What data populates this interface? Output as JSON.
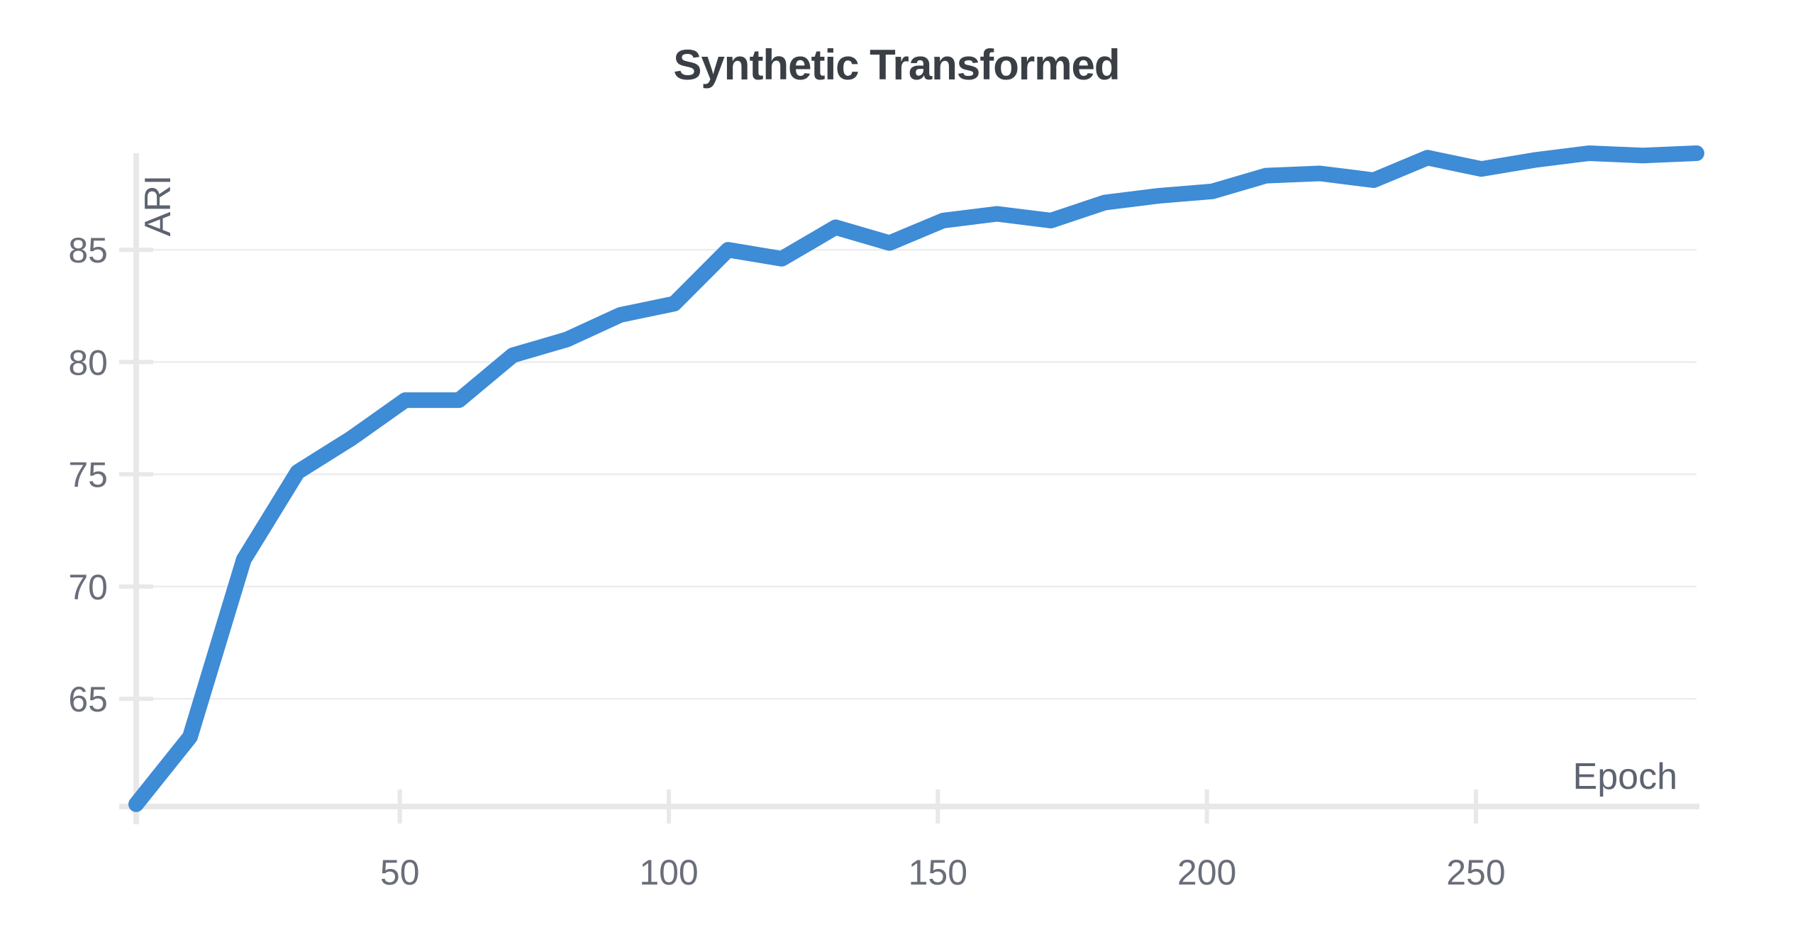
{
  "chart": {
    "title": "Synthetic Transformed",
    "x_axis_label": "Epoch",
    "y_axis_label": "ARI",
    "x_tick_labels": [
      "50",
      "100",
      "150",
      "200",
      "250"
    ],
    "y_tick_labels": [
      "65",
      "70",
      "75",
      "80",
      "85"
    ]
  },
  "colors": {
    "line": "#3e8bd6",
    "title_text": "#3a3f46",
    "axis_title_text": "#5d6370",
    "tick_label_text": "#6a6e7a",
    "axis_line": "#e8e8e8",
    "tick_mark": "#e8e8e8",
    "gridline": "#ededed",
    "background": "#ffffff"
  },
  "chart_data": {
    "type": "line",
    "title": "Synthetic Transformed",
    "xlabel": "Epoch",
    "ylabel": "ARI",
    "series": [
      {
        "name": "ARI",
        "x": [
          1,
          11,
          21,
          31,
          41,
          51,
          61,
          71,
          81,
          91,
          101,
          111,
          121,
          131,
          141,
          151,
          161,
          171,
          181,
          191,
          201,
          211,
          221,
          231,
          241,
          251,
          261,
          271,
          281,
          291
        ],
        "y": [
          60.3,
          63.3,
          71.2,
          75.1,
          76.6,
          78.3,
          78.3,
          80.3,
          81.0,
          82.1,
          82.6,
          85.0,
          84.6,
          86.0,
          85.3,
          86.3,
          86.6,
          86.3,
          87.1,
          87.4,
          87.6,
          88.3,
          88.4,
          88.1,
          89.1,
          88.6,
          89.0,
          89.3,
          89.2,
          89.3
        ]
      }
    ],
    "xticks": [
      50,
      100,
      150,
      200,
      250
    ],
    "yticks": [
      65,
      70,
      75,
      80,
      85
    ],
    "xlim": [
      1,
      291
    ],
    "ylim": [
      60.2,
      89.3
    ],
    "grid": "horizontal-only",
    "legend": "none",
    "line_width": 22
  }
}
